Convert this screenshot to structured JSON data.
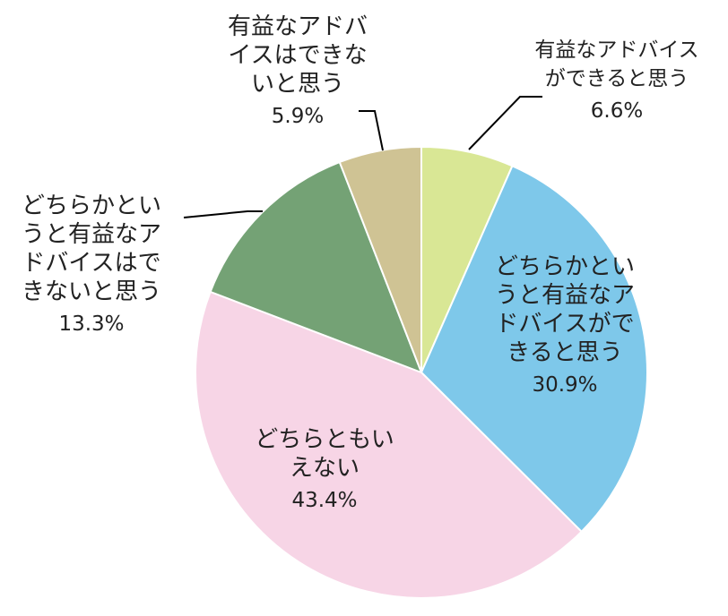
{
  "chart_data": {
    "type": "pie",
    "title": "",
    "categories": [
      "有益なアドバイスができると思う",
      "どちらかというと有益なアドバイスができると思う",
      "どちらともいえない",
      "どちらかというと有益なアドバイスはできないと思う",
      "有益なアドバイスはできないと思う"
    ],
    "labels": [
      "有益なアドバイス\nができると思う",
      "どちらかとい\nうと有益なア\nドバイスがで\nきると思う",
      "どちらともい\nえない",
      "どちらかとい\nうと有益なア\nドバイスはで\nきないと思う",
      "有益なアドバ\nイスはできな\nいと思う"
    ],
    "values": [
      6.6,
      30.9,
      43.4,
      13.3,
      5.9
    ],
    "value_labels": [
      "6.6%",
      "30.9%",
      "43.4%",
      "13.3%",
      "5.9%"
    ],
    "colors": [
      "#d9e795",
      "#7ec8ea",
      "#f7d5e6",
      "#74a275",
      "#cfc394"
    ],
    "start_angle": "12 o'clock",
    "direction": "clockwise",
    "legend": "none"
  }
}
